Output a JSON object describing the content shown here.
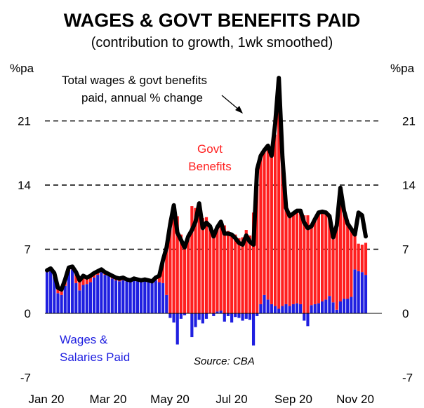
{
  "chart_data": {
    "type": "bar+line",
    "title": "WAGES & GOVT BENEFITS PAID",
    "subtitle": "(contribution to growth, 1wk smoothed)",
    "ylabel_left": "%pa",
    "ylabel_right": "%pa",
    "ylim": [
      -7,
      28
    ],
    "yticks": [
      -7,
      0,
      7,
      14,
      21
    ],
    "dashed_gridlines_at": [
      7,
      14,
      21
    ],
    "x_tick_labels": [
      "Jan 20",
      "Mar 20",
      "May 20",
      "Jul 20",
      "Sep 20",
      "Nov 20"
    ],
    "annotations": {
      "line_label_line1": "Total wages & govt benefits",
      "line_label_line2": "paid, annual % change",
      "govt_label_line1": "Govt",
      "govt_label_line2": "Benefits",
      "wages_label_line1": "Wages &",
      "wages_label_line2": "Salaries Paid",
      "source": "Source: CBA"
    },
    "series": [
      {
        "name": "Wages & Salaries Paid",
        "type": "bar",
        "color": "#1f1fe0",
        "values": [
          4.5,
          4.6,
          4.0,
          2.2,
          2.0,
          3.0,
          4.6,
          4.8,
          3.3,
          2.5,
          3.1,
          3.2,
          3.4,
          3.9,
          4.2,
          4.5,
          4.2,
          4.1,
          3.8,
          3.6,
          3.5,
          3.6,
          3.5,
          3.4,
          3.6,
          3.5,
          3.4,
          3.5,
          3.4,
          3.3,
          3.6,
          3.4,
          3.3,
          2.0,
          -0.5,
          -1.0,
          -3.4,
          -0.6,
          -0.2,
          0.0,
          -2.6,
          -1.5,
          -0.7,
          -1.1,
          -0.6,
          0.0,
          -0.3,
          0.2,
          0.3,
          -0.9,
          -0.3,
          -1.0,
          -0.4,
          -0.5,
          -0.8,
          -0.6,
          -0.7,
          -3.5,
          -0.3,
          1.0,
          2.0,
          1.5,
          1.0,
          0.8,
          0.5,
          0.8,
          1.0,
          0.8,
          1.0,
          1.1,
          1.0,
          -0.8,
          -1.4,
          0.9,
          1.0,
          1.1,
          1.3,
          1.5,
          1.9,
          1.2,
          0.4,
          1.3,
          1.6,
          1.6,
          1.8,
          4.8,
          4.6,
          4.5,
          4.2
        ]
      },
      {
        "name": "Govt Benefits",
        "type": "bar",
        "color": "#ff1f1f",
        "values": [
          0.2,
          0.3,
          0.4,
          0.6,
          0.6,
          0.7,
          0.4,
          0.3,
          1.2,
          1.1,
          1.0,
          0.7,
          0.7,
          0.5,
          0.4,
          0.3,
          0.3,
          0.2,
          0.3,
          0.3,
          0.3,
          0.3,
          0.2,
          0.2,
          0.2,
          0.2,
          0.2,
          0.2,
          0.2,
          0.2,
          0.3,
          0.7,
          2.5,
          5.2,
          10.2,
          11.3,
          10.6,
          8.6,
          7.4,
          8.4,
          11.7,
          11.5,
          10.6,
          10.4,
          10.5,
          9.5,
          8.7,
          9.2,
          9.7,
          9.6,
          9.0,
          8.6,
          8.6,
          8.2,
          8.3,
          9.1,
          8.5,
          11.0,
          16.0,
          16.2,
          15.8,
          16.8,
          16.2,
          18.7,
          21.7,
          15.6,
          10.5,
          9.8,
          9.9,
          10.1,
          10.2,
          10.7,
          10.7,
          8.6,
          9.3,
          9.9,
          9.8,
          9.5,
          8.7,
          7.1,
          9.2,
          12.4,
          9.6,
          8.2,
          7.4,
          3.8,
          3.0,
          3.0,
          3.5
        ]
      },
      {
        "name": "Total wages & govt benefits paid, annual % change",
        "type": "line",
        "color": "#000000",
        "values": [
          4.7,
          4.9,
          4.4,
          2.8,
          2.6,
          3.7,
          5.0,
          5.1,
          4.5,
          3.6,
          4.1,
          3.9,
          4.1,
          4.4,
          4.6,
          4.8,
          4.5,
          4.3,
          4.1,
          3.9,
          3.8,
          3.9,
          3.7,
          3.6,
          3.8,
          3.7,
          3.6,
          3.7,
          3.6,
          3.5,
          3.9,
          4.1,
          5.8,
          7.2,
          9.7,
          11.8,
          8.8,
          8.0,
          7.2,
          8.4,
          9.1,
          10.0,
          12.0,
          9.3,
          9.9,
          9.5,
          8.4,
          9.4,
          10.0,
          8.7,
          8.7,
          8.6,
          8.2,
          7.7,
          7.5,
          8.5,
          7.8,
          7.5,
          15.7,
          17.2,
          17.8,
          18.3,
          17.2,
          20.7,
          25.7,
          17.1,
          11.5,
          10.6,
          10.9,
          11.2,
          11.2,
          9.9,
          9.3,
          9.5,
          10.3,
          11.0,
          11.1,
          11.0,
          10.6,
          8.3,
          9.6,
          13.7,
          11.2,
          9.8,
          9.2,
          8.6,
          11.0,
          10.7,
          8.4
        ]
      }
    ]
  }
}
